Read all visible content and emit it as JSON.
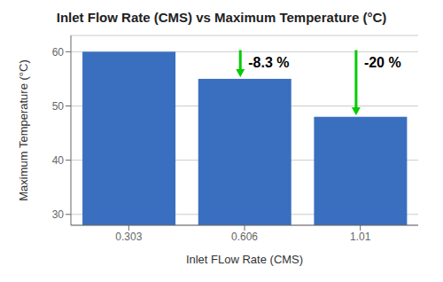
{
  "chart_data": {
    "type": "bar",
    "title": "Inlet Flow Rate (CMS) vs Maximum Temperature (°C)",
    "xlabel": "Inlet FLow Rate (CMS)",
    "ylabel": "Maximum Temperature (°C)",
    "categories": [
      "0.303",
      "0.606",
      "1.01"
    ],
    "values": [
      60.0,
      55.0,
      48.0
    ],
    "color": "#3A6FBF",
    "ylim": [
      28,
      63
    ],
    "yticks": [
      30,
      40,
      50,
      60
    ],
    "grid": true,
    "annotations": [
      "-8.3 %",
      "-20 %"
    ]
  }
}
